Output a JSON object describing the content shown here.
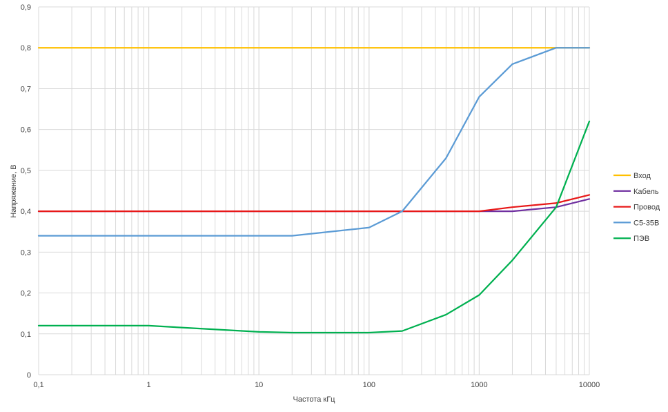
{
  "chart_data": {
    "type": "line",
    "xlabel": "Частота кГц",
    "ylabel": "Напряжение, В",
    "x_scale": "log",
    "xlim": [
      0.1,
      10000
    ],
    "ylim": [
      0,
      0.9
    ],
    "grid": true,
    "legend_position": "right",
    "x_ticks": [
      {
        "v": 0.1,
        "label": "0,1"
      },
      {
        "v": 1,
        "label": "1"
      },
      {
        "v": 10,
        "label": "10"
      },
      {
        "v": 100,
        "label": "100"
      },
      {
        "v": 1000,
        "label": "1000"
      },
      {
        "v": 10000,
        "label": "10000"
      }
    ],
    "y_ticks": [
      {
        "v": 0,
        "label": "0"
      },
      {
        "v": 0.1,
        "label": "0,1"
      },
      {
        "v": 0.2,
        "label": "0,2"
      },
      {
        "v": 0.3,
        "label": "0,3"
      },
      {
        "v": 0.4,
        "label": "0,4"
      },
      {
        "v": 0.5,
        "label": "0,5"
      },
      {
        "v": 0.6,
        "label": "0,6"
      },
      {
        "v": 0.7,
        "label": "0,7"
      },
      {
        "v": 0.8,
        "label": "0,8"
      },
      {
        "v": 0.9,
        "label": "0,9"
      }
    ],
    "series": [
      {
        "name": "Вход",
        "color": "#FFC000",
        "x": [
          0.1,
          10000
        ],
        "y": [
          0.8,
          0.8
        ]
      },
      {
        "name": "Кабель",
        "color": "#7030A0",
        "x": [
          0.1,
          1,
          10,
          20,
          100,
          200,
          1000,
          2000,
          5000,
          10000
        ],
        "y": [
          0.4,
          0.4,
          0.4,
          0.4,
          0.4,
          0.4,
          0.4,
          0.4,
          0.41,
          0.43
        ]
      },
      {
        "name": "Провод",
        "color": "#E81818",
        "x": [
          0.1,
          1,
          10,
          20,
          100,
          200,
          1000,
          2000,
          5000,
          10000
        ],
        "y": [
          0.4,
          0.4,
          0.4,
          0.4,
          0.4,
          0.4,
          0.4,
          0.41,
          0.42,
          0.44
        ]
      },
      {
        "name": "С5-35В",
        "color": "#5B9BD5",
        "x": [
          0.1,
          1,
          10,
          20,
          100,
          200,
          500,
          1000,
          2000,
          5000,
          10000
        ],
        "y": [
          0.34,
          0.34,
          0.34,
          0.34,
          0.36,
          0.4,
          0.53,
          0.68,
          0.76,
          0.8,
          0.8
        ]
      },
      {
        "name": "ПЭВ",
        "color": "#00B050",
        "x": [
          0.1,
          1,
          10,
          20,
          100,
          200,
          500,
          1000,
          2000,
          5000,
          10000
        ],
        "y": [
          0.12,
          0.12,
          0.105,
          0.103,
          0.103,
          0.107,
          0.147,
          0.195,
          0.28,
          0.41,
          0.62
        ]
      }
    ]
  }
}
